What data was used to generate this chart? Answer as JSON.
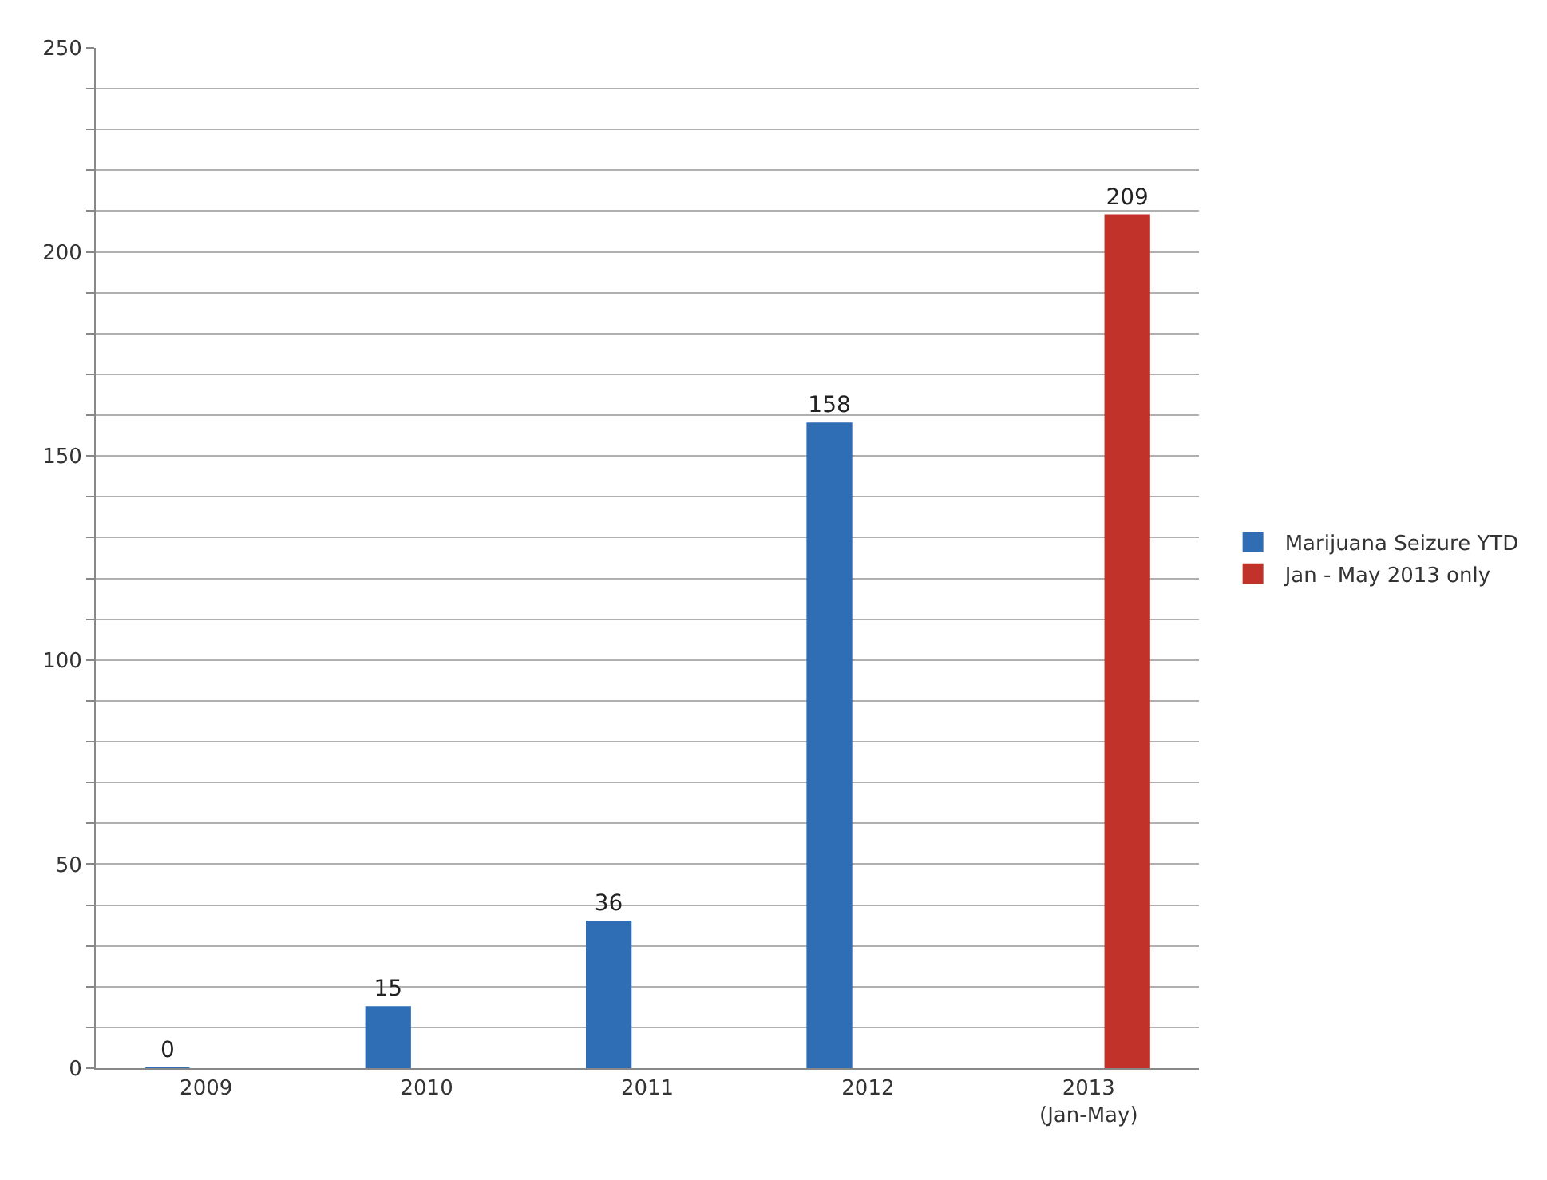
{
  "chart_data": {
    "type": "bar",
    "categories": [
      "2009",
      "2010",
      "2011",
      "2012",
      "2013\n(Jan-May)"
    ],
    "series": [
      {
        "name": "Marijuana Seizure YTD",
        "color": "#2f6db5",
        "values": [
          0,
          15,
          36,
          158,
          null
        ]
      },
      {
        "name": "Jan - May 2013 only",
        "color": "#c0322a",
        "values": [
          null,
          null,
          null,
          null,
          209
        ]
      }
    ],
    "ylim": [
      0,
      250
    ],
    "yticks": [
      0,
      {
        "value": 10,
        "label": null
      },
      {
        "value": 20,
        "label": null
      },
      {
        "value": 30,
        "label": null
      },
      {
        "value": 40,
        "label": null
      },
      50,
      {
        "value": 60,
        "label": null
      },
      {
        "value": 70,
        "label": null
      },
      {
        "value": 80,
        "label": null
      },
      {
        "value": 90,
        "label": null
      },
      100,
      {
        "value": 110,
        "label": null
      },
      {
        "value": 120,
        "label": null
      },
      {
        "value": 130,
        "label": null
      },
      {
        "value": 140,
        "label": null
      },
      150,
      {
        "value": 160,
        "label": null
      },
      {
        "value": 170,
        "label": null
      },
      {
        "value": 180,
        "label": null
      },
      {
        "value": 190,
        "label": null
      },
      200,
      {
        "value": 210,
        "label": null
      },
      {
        "value": 220,
        "label": null
      },
      {
        "value": 230,
        "label": null
      },
      {
        "value": 240,
        "label": null
      },
      250
    ],
    "grid": "y",
    "legend": "right",
    "data_labels": true
  }
}
